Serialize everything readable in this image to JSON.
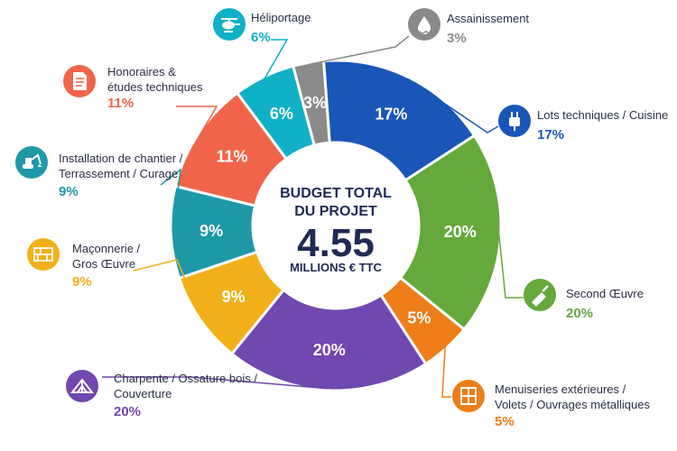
{
  "chart_data": {
    "type": "pie",
    "center": {
      "line1": "BUDGET TOTAL",
      "line2": "DU PROJET",
      "value": "4.55",
      "unit": "MILLIONS € TTC"
    },
    "slices": [
      {
        "key": "assainissement",
        "lines": [
          "Assainissement"
        ],
        "value": 3,
        "label": "3%",
        "color": "#8a8a8a",
        "icon": "water-drop-icon"
      },
      {
        "key": "lots-techniques",
        "lines": [
          "Lots techniques / Cuisine"
        ],
        "value": 17,
        "label": "17%",
        "color": "#1a56b8",
        "icon": "plug-icon"
      },
      {
        "key": "second-oeuvre",
        "lines": [
          "Second Œuvre"
        ],
        "value": 20,
        "label": "20%",
        "color": "#65a83c",
        "icon": "trowel-icon"
      },
      {
        "key": "menuiseries",
        "lines": [
          "Menuiseries extérieures /",
          "Volets / Ouvrages métalliques"
        ],
        "value": 5,
        "label": "5%",
        "color": "#ee7d1a",
        "icon": "window-icon"
      },
      {
        "key": "charpente",
        "lines": [
          "Charpente / Ossature bois /",
          "Couverture"
        ],
        "value": 20,
        "label": "20%",
        "color": "#7147b0",
        "icon": "roof-truss-icon"
      },
      {
        "key": "maconnerie",
        "lines": [
          "Maçonnerie /",
          "Gros Œuvre"
        ],
        "value": 9,
        "label": "9%",
        "color": "#f2b11a",
        "icon": "bricks-icon"
      },
      {
        "key": "installation",
        "lines": [
          "Installation de chantier /",
          "Terrassement / Curage"
        ],
        "value": 9,
        "label": "9%",
        "color": "#1f98a8",
        "icon": "excavator-icon"
      },
      {
        "key": "honoraires",
        "lines": [
          "Honoraires &",
          "études techniques"
        ],
        "value": 11,
        "label": "11%",
        "color": "#f0654a",
        "icon": "document-icon"
      },
      {
        "key": "heliportage",
        "lines": [
          "Héliportage"
        ],
        "value": 6,
        "label": "6%",
        "color": "#10b0c6",
        "icon": "helicopter-icon"
      }
    ]
  }
}
